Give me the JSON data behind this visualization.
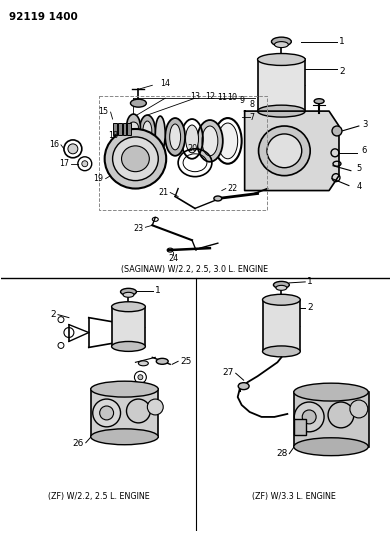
{
  "title_code": "92119 1400",
  "bg_color": "#ffffff",
  "border_color": "#000000",
  "diagram_color": "#000000",
  "caption_top": "(SAGINAW) W/2.2, 2.5, 3.0 L. ENGINE",
  "caption_bottom_left": "(ZF) W/2.2, 2.5 L. ENGINE",
  "caption_bottom_right": "(ZF) W/3.3 L. ENGINE",
  "figsize": [
    3.91,
    5.33
  ],
  "dpi": 100
}
